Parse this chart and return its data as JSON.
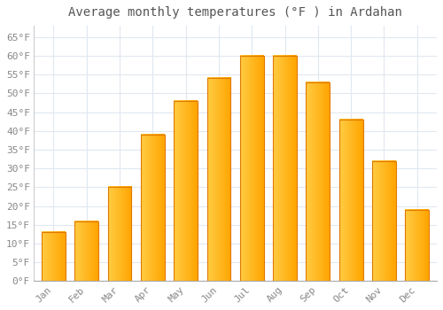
{
  "title": "Average monthly temperatures (°F ) in Ardahan",
  "months": [
    "Jan",
    "Feb",
    "Mar",
    "Apr",
    "May",
    "Jun",
    "Jul",
    "Aug",
    "Sep",
    "Oct",
    "Nov",
    "Dec"
  ],
  "values": [
    13,
    16,
    25,
    39,
    48,
    54,
    60,
    60,
    53,
    43,
    32,
    19
  ],
  "bar_color_main": "#FFA500",
  "bar_color_light": "#FFCC44",
  "bar_color_dark": "#E07800",
  "background_color": "#FFFFFF",
  "grid_color": "#E0E8F0",
  "ylim": [
    0,
    68
  ],
  "yticks": [
    0,
    5,
    10,
    15,
    20,
    25,
    30,
    35,
    40,
    45,
    50,
    55,
    60,
    65
  ],
  "ylabel_suffix": "°F",
  "title_fontsize": 10,
  "tick_fontsize": 8,
  "tick_color": "#888888",
  "bar_width": 0.72,
  "title_color": "#555555"
}
